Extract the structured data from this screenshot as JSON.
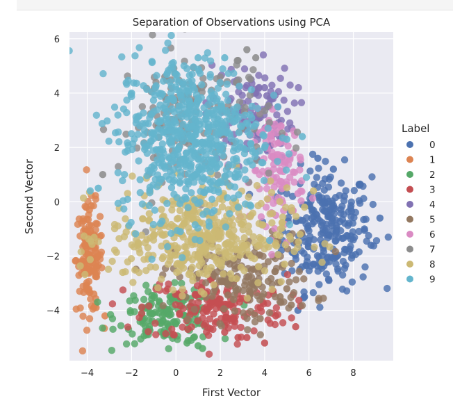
{
  "chart_data": {
    "type": "scatter",
    "title": "Separation of Observations using PCA",
    "xlabel": "First Vector",
    "ylabel": "Second Vector",
    "xlim": [
      -4.8,
      9.8
    ],
    "ylim": [
      -5.85,
      6.25
    ],
    "xticks": [
      -4,
      -2,
      0,
      2,
      4,
      6,
      8
    ],
    "yticks": [
      -4,
      -2,
      0,
      2,
      4,
      6
    ],
    "grid": true,
    "legend": {
      "title": "Label",
      "placement": "right"
    },
    "series": [
      {
        "name": "0",
        "color": "#4c72b0",
        "center": [
          6.8,
          -1.0
        ],
        "spread": [
          1.0,
          1.1
        ],
        "count": 260,
        "points": [
          [
            6.2,
            -2.3
          ],
          [
            7.6,
            0.2
          ],
          [
            8.5,
            -1.0
          ],
          [
            9.2,
            -0.6
          ],
          [
            5.8,
            -3.5
          ],
          [
            6.9,
            -2.9
          ],
          [
            5.5,
            -4.0
          ],
          [
            8.8,
            -1.6
          ],
          [
            7.1,
            1.2
          ],
          [
            6.4,
            1.6
          ]
        ]
      },
      {
        "name": "1",
        "color": "#dd8452",
        "center": [
          -3.9,
          -2.1
        ],
        "spread": [
          0.3,
          1.0
        ],
        "count": 140,
        "points": [
          [
            -4.1,
            -1.0
          ],
          [
            -4.2,
            -2.4
          ],
          [
            -3.7,
            -3.4
          ],
          [
            -3.2,
            -4.2
          ],
          [
            -3.9,
            -0.3
          ],
          [
            -3.6,
            -3.9
          ]
        ]
      },
      {
        "name": "2",
        "color": "#55a868",
        "center": [
          -0.4,
          -4.2
        ],
        "spread": [
          1.1,
          0.5
        ],
        "count": 150,
        "points": [
          [
            0.5,
            -5.2
          ],
          [
            -0.5,
            -4.9
          ],
          [
            1.0,
            -5.3
          ],
          [
            1.2,
            -5.4
          ],
          [
            -1.2,
            -4.6
          ],
          [
            0.8,
            -5.0
          ]
        ]
      },
      {
        "name": "3",
        "color": "#c44e52",
        "center": [
          1.8,
          -3.9
        ],
        "spread": [
          1.6,
          0.6
        ],
        "count": 170,
        "points": [
          [
            3.2,
            -5.0
          ],
          [
            4.0,
            -5.2
          ],
          [
            5.4,
            -4.6
          ],
          [
            2.2,
            -4.8
          ],
          [
            2.8,
            -5.0
          ],
          [
            4.5,
            -4.2
          ]
        ]
      },
      {
        "name": "4",
        "color": "#8172b3",
        "center": [
          3.3,
          3.3
        ],
        "spread": [
          1.0,
          0.9
        ],
        "count": 110,
        "points": [
          [
            3.6,
            4.0
          ],
          [
            4.0,
            4.2
          ],
          [
            4.1,
            3.9
          ],
          [
            4.2,
            3.6
          ],
          [
            3.8,
            3.1
          ],
          [
            2.5,
            2.2
          ]
        ]
      },
      {
        "name": "5",
        "color": "#937860",
        "center": [
          3.0,
          -2.8
        ],
        "spread": [
          1.6,
          0.8
        ],
        "count": 170,
        "points": [
          [
            4.7,
            -3.5
          ],
          [
            5.0,
            -3.2
          ],
          [
            3.8,
            -4.3
          ],
          [
            5.2,
            -3.8
          ],
          [
            2.6,
            -3.6
          ]
        ]
      },
      {
        "name": "6",
        "color": "#da8bc3",
        "center": [
          4.6,
          1.2
        ],
        "spread": [
          0.6,
          1.0
        ],
        "count": 110,
        "points": [
          [
            4.9,
            2.4
          ],
          [
            5.3,
            1.8
          ],
          [
            5.5,
            0.3
          ],
          [
            4.5,
            -0.5
          ],
          [
            5.0,
            -1.5
          ],
          [
            4.3,
            2.5
          ]
        ]
      },
      {
        "name": "7",
        "color": "#8c8c8c",
        "center": [
          0.8,
          3.0
        ],
        "spread": [
          1.7,
          1.4
        ],
        "count": 150,
        "points": [
          [
            3.2,
            5.6
          ],
          [
            3.6,
            5.3
          ],
          [
            2.8,
            5.2
          ],
          [
            -0.5,
            4.6
          ],
          [
            -3.3,
            1.0
          ]
        ]
      },
      {
        "name": "8",
        "color": "#ccb974",
        "center": [
          1.0,
          -1.3
        ],
        "spread": [
          2.0,
          0.9
        ],
        "count": 420,
        "points": [
          [
            5.6,
            -1.2
          ],
          [
            5.8,
            -0.2
          ],
          [
            6.2,
            0.4
          ],
          [
            4.9,
            -2.3
          ],
          [
            -2.4,
            -2.6
          ],
          [
            2.2,
            0.9
          ]
        ]
      },
      {
        "name": "9",
        "color": "#64b5cd",
        "center": [
          0.6,
          2.4
        ],
        "spread": [
          1.6,
          1.5
        ],
        "count": 620,
        "points": [
          [
            1.0,
            5.3
          ],
          [
            2.2,
            5.3
          ],
          [
            0.0,
            4.7
          ],
          [
            5.0,
            2.3
          ],
          [
            5.7,
            2.4
          ],
          [
            4.0,
            2.0
          ],
          [
            -3.5,
            0.5
          ],
          [
            -2.0,
            4.0
          ],
          [
            1.5,
            -0.9
          ],
          [
            0.2,
            -1.1
          ]
        ]
      }
    ]
  }
}
